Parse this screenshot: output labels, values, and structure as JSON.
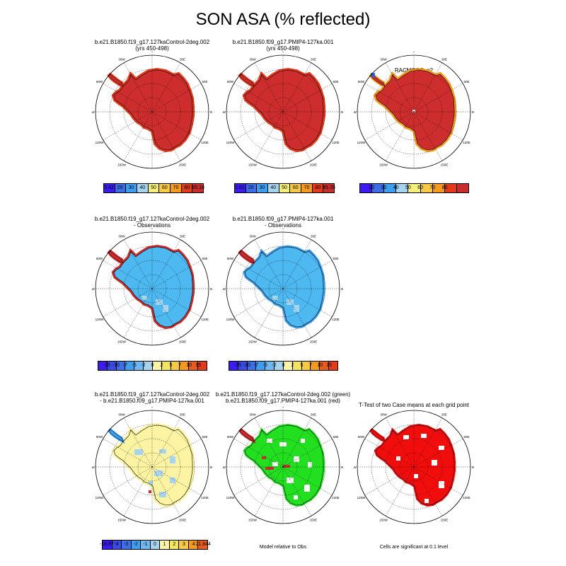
{
  "title": "SON ASA (% reflected)",
  "colors": {
    "palette_abs": [
      "#3d1cf2",
      "#3e6ee6",
      "#3e9ff0",
      "#a6d4ef",
      "#f5f07a",
      "#f7c945",
      "#f39a1f",
      "#e33a1b",
      "#c82e2e"
    ],
    "palette_diff": [
      "#3d1cf2",
      "#3a4be6",
      "#3d6fe8",
      "#3e9ff0",
      "#6cb8f0",
      "#a6d4ef",
      "#fbf3a8",
      "#f5e45e",
      "#f7c945",
      "#f39a1f",
      "#e85c1e",
      "#e33a1b",
      "#c82e2e"
    ],
    "red_fill": "#cd2d2d",
    "lightblue_fill": "#4eb8f0",
    "yellow_fill": "#fdf4a3",
    "green_fill": "#22e020",
    "sig_red": "#f20d0d"
  },
  "lon_labels": [
    "0",
    "30E",
    "60E",
    "90E",
    "120E",
    "150E",
    "180",
    "150W",
    "120W",
    "90W",
    "60W",
    "30W"
  ],
  "panels": [
    {
      "id": "p1",
      "title_lines": [
        "b.e21.B1850.f19_g17.127kaControl-2deg.002",
        "(yrs 450-498)"
      ],
      "style": "abs_model"
    },
    {
      "id": "p2",
      "title_lines": [
        "b.e21.B1850.f09_g17.PMIP4-127ka.001",
        "(yrs 450-498)"
      ],
      "style": "abs_model"
    },
    {
      "id": "p3",
      "title_lines": [
        "RACMO2.3_p2"
      ],
      "style": "abs_obs"
    },
    {
      "id": "p4",
      "title_lines": [
        "b.e21.B1850.f19_g17.127kaControl-2deg.002",
        "- Observations"
      ],
      "style": "diff_obs"
    },
    {
      "id": "p5",
      "title_lines": [
        "b.e21.B1850.f09_g17.PMIP4-127ka.001",
        "- Observations"
      ],
      "style": "diff_obs2"
    },
    {
      "id": "p6",
      "title_lines": [
        "b.e21.B1850.f19_g17.127kaControl-2deg.002",
        "- b.e21.B1850.f09_g17.PMIP4-127ka.001"
      ],
      "style": "diff_models"
    },
    {
      "id": "p7",
      "title_lines": [
        "b.e21.B1850.f19_g17.127kaControl-2deg.002 (green)",
        "b.e21.B1850.f09_g17.PMIP4-127ka.001 (red)"
      ],
      "style": "rel_obs"
    },
    {
      "id": "p8",
      "title_lines": [
        "T-Test of two Case means at each grid point"
      ],
      "style": "ttest"
    }
  ],
  "colorbars": [
    {
      "id": "cb1",
      "labels": [
        "5.42",
        "20",
        "30",
        "40",
        "50",
        "60",
        "70",
        "80",
        "85.18"
      ]
    },
    {
      "id": "cb2",
      "labels": [
        "5.61",
        "20",
        "30",
        "40",
        "50",
        "60",
        "70",
        "80",
        "85.35"
      ]
    },
    {
      "id": "cb3",
      "labels": [
        "20",
        "30",
        "40",
        "50",
        "60",
        "70",
        "80"
      ]
    },
    {
      "id": "cb4",
      "labels": [
        "-15",
        "-10",
        "-7",
        "-5",
        "-2",
        "0",
        "2",
        "5",
        "7",
        "10",
        "15"
      ]
    },
    {
      "id": "cb5",
      "labels": [
        "-15",
        "-10",
        "-7",
        "-5",
        "-2",
        "0",
        "2",
        "5",
        "7",
        "10",
        "15"
      ]
    },
    {
      "id": "cb6",
      "labels": [
        "-18.97",
        "-4",
        "-3",
        "-2",
        "-1",
        "0",
        "1",
        "2",
        "3",
        "4",
        "21.844"
      ]
    }
  ],
  "notes": {
    "rel_obs": "Model relative to Obs",
    "ttest": "Cells are significant at 0.1 level"
  }
}
